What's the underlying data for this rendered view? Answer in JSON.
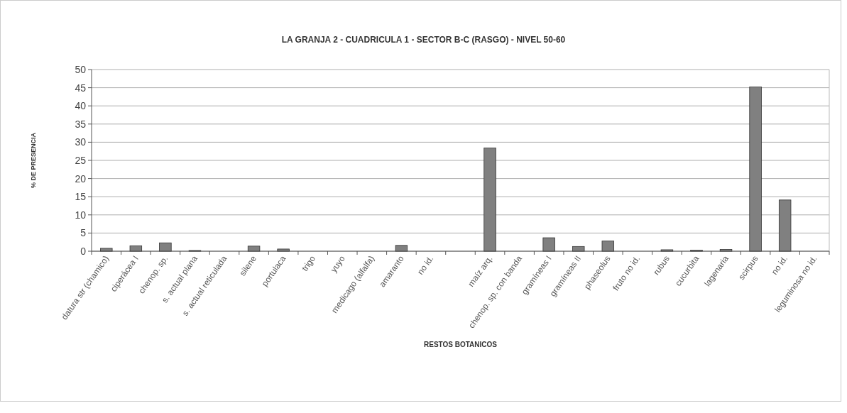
{
  "chart_data": {
    "type": "bar",
    "title": "LA GRANJA 2 - CUADRICULA 1 - SECTOR B-C (RASGO) - NIVEL 50-60",
    "xlabel": "RESTOS BOTANICOS",
    "ylabel": "% DE PRESENCIA",
    "categories": [
      "datura str (chamico)",
      "ciperácea I",
      "chenop. sp.",
      "s. actual plana",
      "s. actual reticulada",
      "silene",
      "portulaca",
      "trigo",
      "yuyo",
      "medicago (alfalfa)",
      "amaranto",
      "no id.",
      null,
      "maíz arq.",
      "chenop. sp. con banda",
      "gramíneas I",
      "gramíneas II",
      "phaseolus",
      "fruto no id.",
      "rubus",
      "cucurbita",
      "lagenaria",
      "scirpus",
      "no id.",
      "leguminosa no id."
    ],
    "values": [
      0.8,
      1.5,
      2.3,
      0.2,
      0,
      1.4,
      0.6,
      0,
      0,
      0,
      1.6,
      0,
      0,
      28.4,
      0,
      3.7,
      1.3,
      2.8,
      0,
      0.4,
      0.3,
      0.5,
      45.2,
      14.1,
      0
    ],
    "color": "#808080",
    "ylim": [
      0,
      50
    ],
    "yticks": [
      0,
      5,
      10,
      15,
      20,
      25,
      30,
      35,
      40,
      45,
      50
    ],
    "grid": "y"
  }
}
